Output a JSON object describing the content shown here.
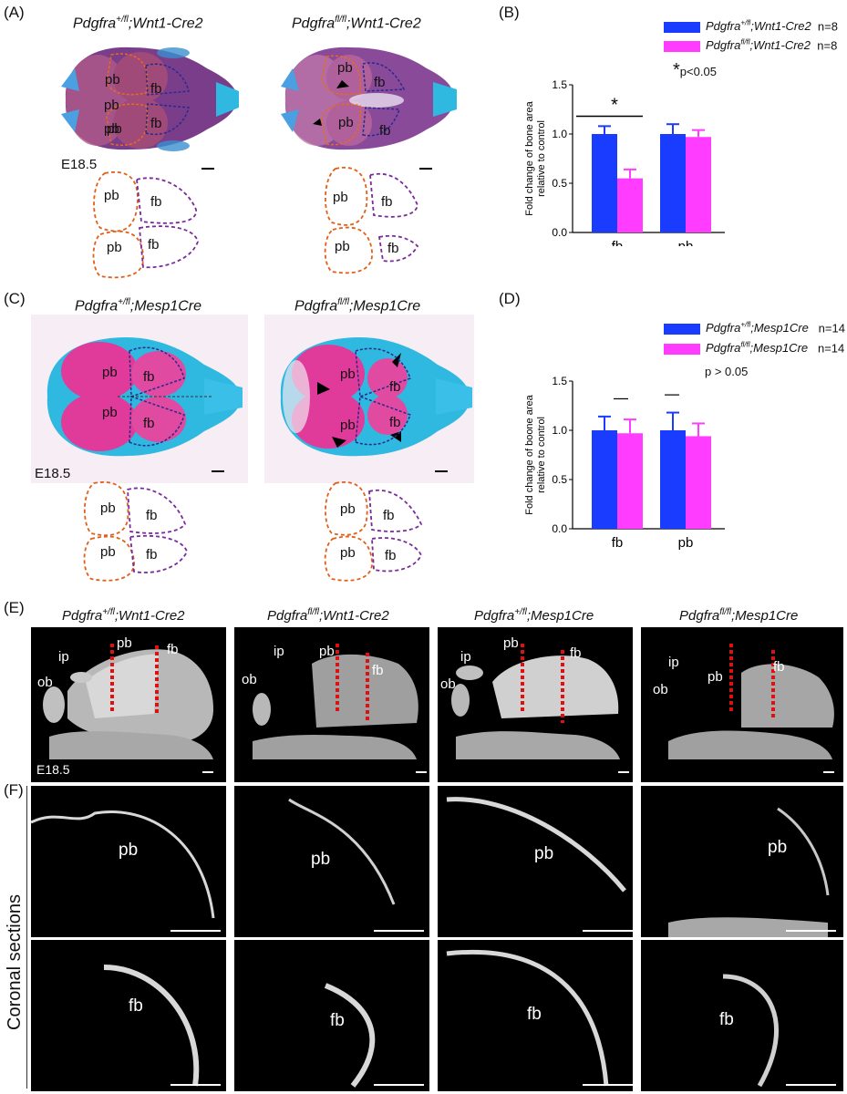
{
  "panels": {
    "A": {
      "label": "(A)",
      "ctrl_genotype": {
        "gene": "Pdgfra",
        "sup": "+/fl",
        "suffix": ";Wnt1-Cre2"
      },
      "mut_genotype": {
        "gene": "Pdgfra",
        "sup": "fl/fl",
        "suffix": ";Wnt1-Cre2"
      },
      "stage": "E18.5",
      "pb": "pb",
      "fb": "fb"
    },
    "B": {
      "label": "(B)",
      "legend": [
        {
          "gene": "Pdgfra",
          "sup": "+/fl",
          "suffix": ";Wnt1-Cre2",
          "n": "n=8",
          "color": "#1a3cff"
        },
        {
          "gene": "Pdgfra",
          "sup": "fl/fl",
          "suffix": ";Wnt1-Cre2",
          "n": "n=8",
          "color": "#ff3cff"
        }
      ],
      "star": "*",
      "sig_note": "p<0.05"
    },
    "C": {
      "label": "(C)",
      "ctrl_genotype": {
        "gene": "Pdgfra",
        "sup": "+/fl",
        "suffix": ";Mesp1Cre"
      },
      "mut_genotype": {
        "gene": "Pdgfra",
        "sup": "fl/fl",
        "suffix": ";Mesp1Cre"
      },
      "stage": "E18.5",
      "pb": "pb",
      "fb": "fb"
    },
    "D": {
      "label": "(D)",
      "legend": [
        {
          "gene": "Pdgfra",
          "sup": "+/fl",
          "suffix": ";Mesp1Cre",
          "n": "n=14",
          "color": "#1a3cff"
        },
        {
          "gene": "Pdgfra",
          "sup": "fl/fl",
          "suffix": ";Mesp1Cre",
          "n": "n=14",
          "color": "#ff3cff"
        }
      ],
      "sig_note": "p > 0.05"
    },
    "E": {
      "label": "(E)",
      "genotypes": [
        {
          "gene": "Pdgfra",
          "sup": "+/fl",
          "suffix": ";Wnt1-Cre2"
        },
        {
          "gene": "Pdgfra",
          "sup": "fl/fl",
          "suffix": ";Wnt1-Cre2"
        },
        {
          "gene": "Pdgfra",
          "sup": "+/fl",
          "suffix": ";Mesp1Cre"
        },
        {
          "gene": "Pdgfra",
          "sup": "fl/fl",
          "suffix": ";Mesp1Cre"
        }
      ],
      "stage": "E18.5",
      "ip": "ip",
      "ob": "ob",
      "pb": "pb",
      "fb": "fb"
    },
    "F": {
      "label": "(F)",
      "side_label": "Coronal sections",
      "row1": "pb",
      "row2": "fb"
    }
  },
  "chart_data": [
    {
      "type": "bar",
      "panel": "B",
      "categories": [
        "fb",
        "pb"
      ],
      "series": [
        {
          "name": "Pdgfra+/fl;Wnt1-Cre2",
          "values": [
            1.0,
            1.0
          ],
          "errors": [
            0.08,
            0.1
          ]
        },
        {
          "name": "Pdgfrafl/fl;Wnt1-Cre2",
          "values": [
            0.55,
            0.97
          ],
          "errors": [
            0.09,
            0.07
          ]
        }
      ],
      "ylabel": "Fold change of bone area relative to control",
      "ylim": [
        0,
        1.5
      ],
      "yticks": [
        "0.0",
        "0.5",
        "1.0",
        "1.5"
      ],
      "annotation": "*"
    },
    {
      "type": "bar",
      "panel": "D",
      "categories": [
        "fb",
        "pb"
      ],
      "series": [
        {
          "name": "Pdgfra+/fl;Mesp1Cre",
          "values": [
            1.0,
            1.0
          ],
          "errors": [
            0.14,
            0.18
          ]
        },
        {
          "name": "Pdgfrafl/fl;Mesp1Cre",
          "values": [
            0.97,
            0.94
          ],
          "errors": [
            0.14,
            0.13
          ]
        }
      ],
      "ylabel": "Fold change  of boone area relative to control",
      "ylim": [
        0,
        1.5
      ],
      "yticks": [
        "0.0",
        "0.5",
        "1.0",
        "1.5"
      ]
    }
  ]
}
